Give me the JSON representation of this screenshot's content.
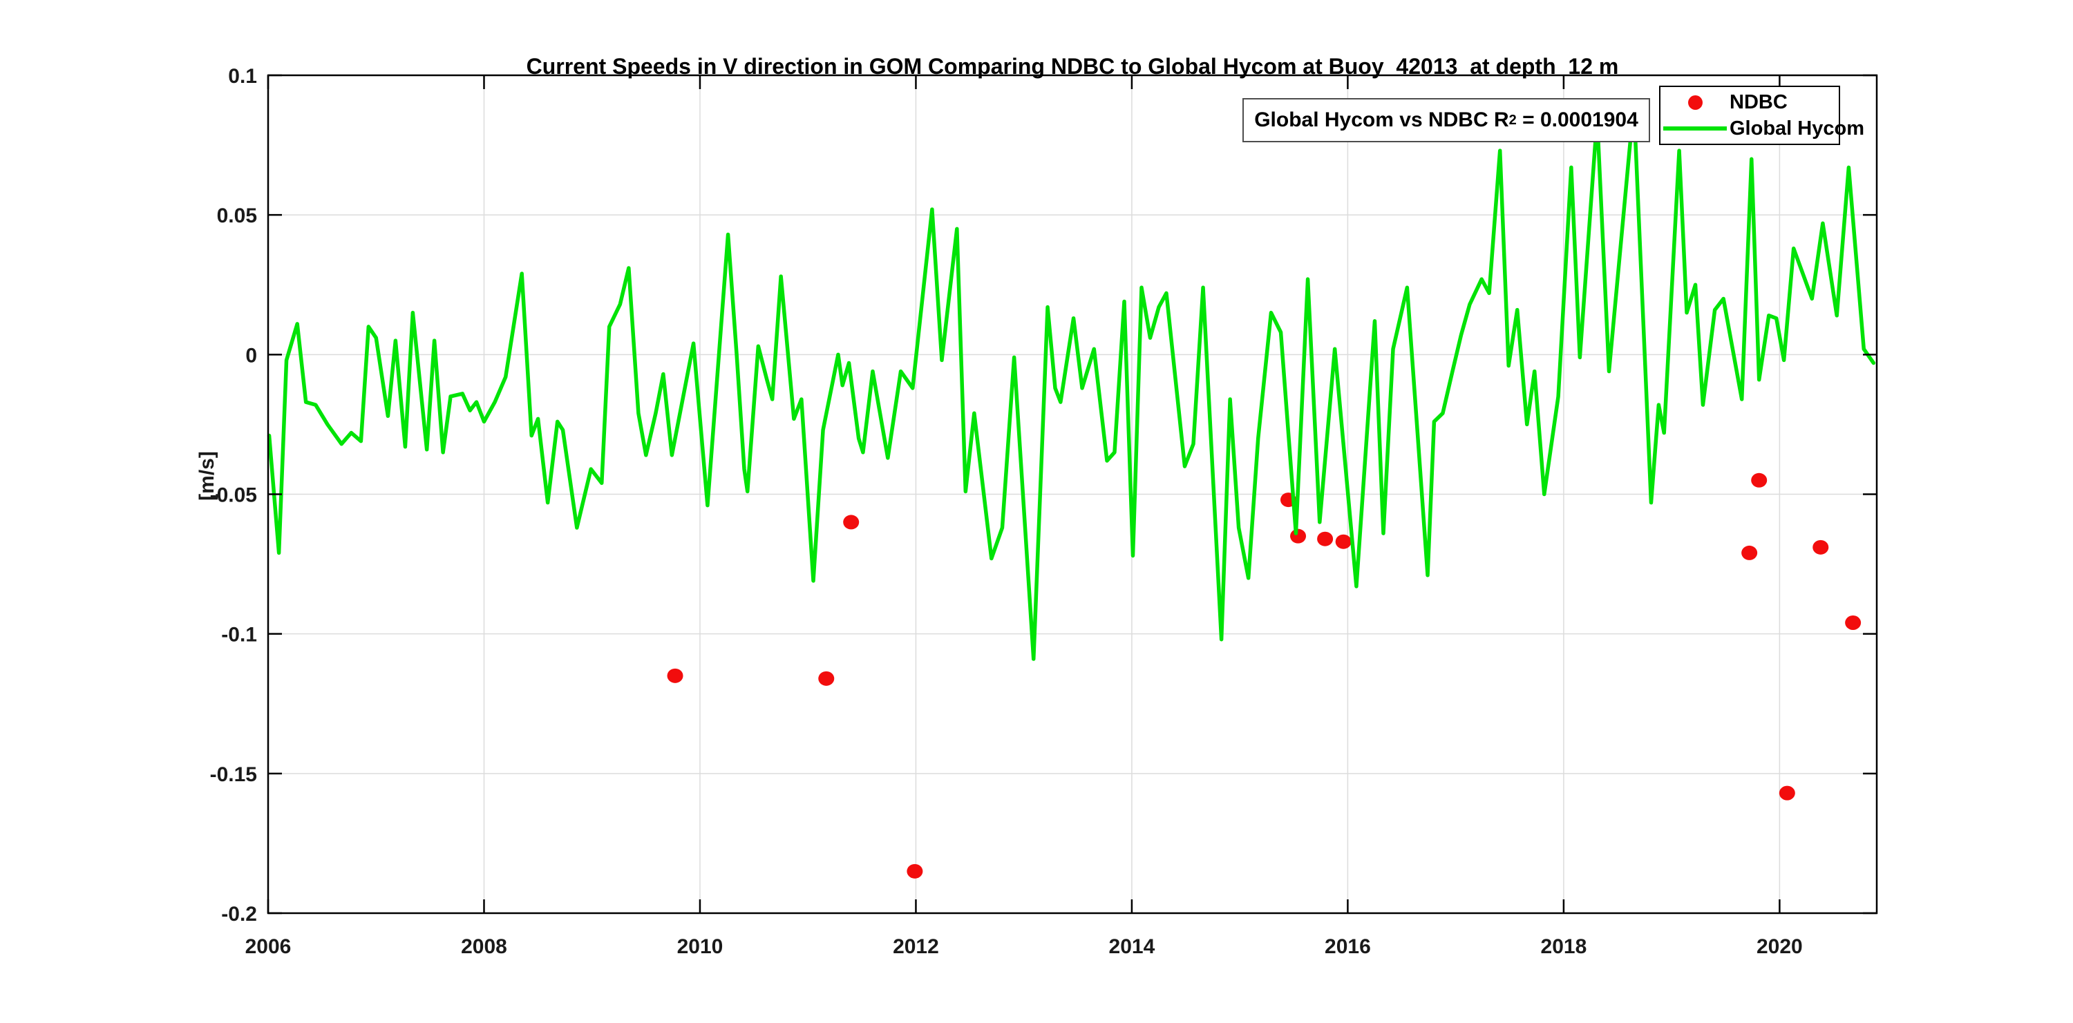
{
  "title": "Current Speeds in V direction in GOM Comparing NDBC to Global Hycom at Buoy  42013  at depth  12 m",
  "annotation": {
    "prefix": "Global Hycom vs NDBC R",
    "superscript": "2",
    "suffix": " = 0.0001904"
  },
  "legend": {
    "entries": [
      {
        "label": "NDBC",
        "marker": "dot",
        "color": "#f20d0d"
      },
      {
        "label": "Global Hycom",
        "marker": "line",
        "color": "#00e307"
      }
    ]
  },
  "chart_data": {
    "type": "line",
    "title": "Current Speeds in V direction in GOM Comparing NDBC to Global Hycom at Buoy  42013  at depth  12 m",
    "xlabel": "",
    "ylabel": "[m/s]",
    "xlim": [
      2006,
      2020.9
    ],
    "ylim": [
      -0.2,
      0.1
    ],
    "grid": true,
    "legend_position": "top-right",
    "xticks": [
      2006,
      2008,
      2010,
      2012,
      2014,
      2016,
      2018,
      2020
    ],
    "xtick_labels": [
      "2006",
      "2008",
      "2010",
      "2012",
      "2014",
      "2016",
      "2018",
      "2020"
    ],
    "yticks": [
      0.1,
      0.05,
      0,
      -0.05,
      -0.1,
      -0.15,
      -0.2
    ],
    "ytick_labels": [
      "0.1",
      "0.05",
      "0",
      "-0.05",
      "-0.1",
      "-0.15",
      "-0.2"
    ],
    "series": [
      {
        "name": "NDBC",
        "type": "scatter",
        "color": "#f20d0d",
        "points": [
          [
            2009.77,
            -0.115
          ],
          [
            2011.17,
            -0.116
          ],
          [
            2011.4,
            -0.06
          ],
          [
            2011.99,
            -0.185
          ],
          [
            2015.45,
            -0.052
          ],
          [
            2015.54,
            -0.065
          ],
          [
            2015.79,
            -0.066
          ],
          [
            2015.96,
            -0.067
          ],
          [
            2019.72,
            -0.071
          ],
          [
            2019.81,
            -0.045
          ],
          [
            2020.07,
            -0.157
          ],
          [
            2020.38,
            -0.069
          ],
          [
            2020.68,
            -0.096
          ]
        ]
      },
      {
        "name": "Global Hycom",
        "type": "line",
        "color": "#00e307",
        "points": [
          [
            2006.01,
            -0.029
          ],
          [
            2006.1,
            -0.071
          ],
          [
            2006.17,
            -0.002
          ],
          [
            2006.27,
            0.011
          ],
          [
            2006.35,
            -0.017
          ],
          [
            2006.44,
            -0.018
          ],
          [
            2006.55,
            -0.025
          ],
          [
            2006.68,
            -0.032
          ],
          [
            2006.77,
            -0.028
          ],
          [
            2006.86,
            -0.031
          ],
          [
            2006.93,
            0.01
          ],
          [
            2007.0,
            0.006
          ],
          [
            2007.11,
            -0.022
          ],
          [
            2007.18,
            0.005
          ],
          [
            2007.27,
            -0.033
          ],
          [
            2007.34,
            0.015
          ],
          [
            2007.47,
            -0.034
          ],
          [
            2007.54,
            0.005
          ],
          [
            2007.62,
            -0.035
          ],
          [
            2007.69,
            -0.015
          ],
          [
            2007.8,
            -0.014
          ],
          [
            2007.87,
            -0.02
          ],
          [
            2007.93,
            -0.017
          ],
          [
            2008.0,
            -0.024
          ],
          [
            2008.1,
            -0.017
          ],
          [
            2008.2,
            -0.008
          ],
          [
            2008.35,
            0.029
          ],
          [
            2008.44,
            -0.029
          ],
          [
            2008.5,
            -0.023
          ],
          [
            2008.59,
            -0.053
          ],
          [
            2008.68,
            -0.024
          ],
          [
            2008.73,
            -0.027
          ],
          [
            2008.86,
            -0.062
          ],
          [
            2008.99,
            -0.041
          ],
          [
            2009.09,
            -0.046
          ],
          [
            2009.16,
            0.01
          ],
          [
            2009.26,
            0.018
          ],
          [
            2009.34,
            0.031
          ],
          [
            2009.43,
            -0.021
          ],
          [
            2009.5,
            -0.036
          ],
          [
            2009.59,
            -0.021
          ],
          [
            2009.66,
            -0.007
          ],
          [
            2009.74,
            -0.036
          ],
          [
            2009.94,
            0.004
          ],
          [
            2010.07,
            -0.054
          ],
          [
            2010.26,
            0.043
          ],
          [
            2010.34,
            0.0
          ],
          [
            2010.41,
            -0.041
          ],
          [
            2010.44,
            -0.049
          ],
          [
            2010.54,
            0.003
          ],
          [
            2010.62,
            -0.009
          ],
          [
            2010.67,
            -0.016
          ],
          [
            2010.75,
            0.028
          ],
          [
            2010.87,
            -0.023
          ],
          [
            2010.94,
            -0.016
          ],
          [
            2011.05,
            -0.081
          ],
          [
            2011.14,
            -0.027
          ],
          [
            2011.28,
            0.0
          ],
          [
            2011.32,
            -0.011
          ],
          [
            2011.38,
            -0.003
          ],
          [
            2011.47,
            -0.03
          ],
          [
            2011.51,
            -0.035
          ],
          [
            2011.6,
            -0.006
          ],
          [
            2011.74,
            -0.037
          ],
          [
            2011.86,
            -0.006
          ],
          [
            2011.97,
            -0.012
          ],
          [
            2012.15,
            0.052
          ],
          [
            2012.24,
            -0.002
          ],
          [
            2012.38,
            0.045
          ],
          [
            2012.46,
            -0.049
          ],
          [
            2012.54,
            -0.021
          ],
          [
            2012.7,
            -0.073
          ],
          [
            2012.8,
            -0.062
          ],
          [
            2012.91,
            -0.001
          ],
          [
            2013.09,
            -0.109
          ],
          [
            2013.22,
            0.017
          ],
          [
            2013.29,
            -0.012
          ],
          [
            2013.34,
            -0.017
          ],
          [
            2013.46,
            0.013
          ],
          [
            2013.54,
            -0.012
          ],
          [
            2013.65,
            0.002
          ],
          [
            2013.77,
            -0.038
          ],
          [
            2013.84,
            -0.035
          ],
          [
            2013.93,
            0.019
          ],
          [
            2014.01,
            -0.072
          ],
          [
            2014.09,
            0.024
          ],
          [
            2014.17,
            0.006
          ],
          [
            2014.25,
            0.017
          ],
          [
            2014.32,
            0.022
          ],
          [
            2014.49,
            -0.04
          ],
          [
            2014.57,
            -0.032
          ],
          [
            2014.66,
            0.024
          ],
          [
            2014.83,
            -0.102
          ],
          [
            2014.91,
            -0.016
          ],
          [
            2014.99,
            -0.062
          ],
          [
            2015.08,
            -0.08
          ],
          [
            2015.17,
            -0.03
          ],
          [
            2015.29,
            0.015
          ],
          [
            2015.38,
            0.008
          ],
          [
            2015.52,
            -0.064
          ],
          [
            2015.63,
            0.027
          ],
          [
            2015.74,
            -0.06
          ],
          [
            2015.88,
            0.002
          ],
          [
            2016.08,
            -0.083
          ],
          [
            2016.25,
            0.012
          ],
          [
            2016.33,
            -0.064
          ],
          [
            2016.42,
            0.002
          ],
          [
            2016.55,
            0.024
          ],
          [
            2016.65,
            -0.03
          ],
          [
            2016.74,
            -0.079
          ],
          [
            2016.8,
            -0.024
          ],
          [
            2016.88,
            -0.021
          ],
          [
            2016.97,
            -0.006
          ],
          [
            2017.05,
            0.007
          ],
          [
            2017.13,
            0.018
          ],
          [
            2017.24,
            0.027
          ],
          [
            2017.31,
            0.022
          ],
          [
            2017.41,
            0.073
          ],
          [
            2017.49,
            -0.004
          ],
          [
            2017.57,
            0.016
          ],
          [
            2017.66,
            -0.025
          ],
          [
            2017.73,
            -0.006
          ],
          [
            2017.82,
            -0.05
          ],
          [
            2017.95,
            -0.015
          ],
          [
            2018.07,
            0.067
          ],
          [
            2018.15,
            -0.001
          ],
          [
            2018.31,
            0.085
          ],
          [
            2018.42,
            -0.006
          ],
          [
            2018.65,
            0.09
          ],
          [
            2018.81,
            -0.053
          ],
          [
            2018.88,
            -0.018
          ],
          [
            2018.93,
            -0.028
          ],
          [
            2019.07,
            0.073
          ],
          [
            2019.14,
            0.015
          ],
          [
            2019.22,
            0.025
          ],
          [
            2019.29,
            -0.018
          ],
          [
            2019.4,
            0.016
          ],
          [
            2019.48,
            0.02
          ],
          [
            2019.65,
            -0.016
          ],
          [
            2019.74,
            0.07
          ],
          [
            2019.81,
            -0.009
          ],
          [
            2019.9,
            0.014
          ],
          [
            2019.97,
            0.013
          ],
          [
            2020.04,
            -0.002
          ],
          [
            2020.13,
            0.038
          ],
          [
            2020.3,
            0.02
          ],
          [
            2020.4,
            0.047
          ],
          [
            2020.53,
            0.014
          ],
          [
            2020.64,
            0.067
          ],
          [
            2020.78,
            0.002
          ],
          [
            2020.87,
            -0.003
          ]
        ]
      }
    ]
  },
  "style": {
    "grid_color": "#dcdcdc",
    "axis_color": "#000000",
    "tick_label_color": "#1a1a1a",
    "background": "#ffffff"
  }
}
